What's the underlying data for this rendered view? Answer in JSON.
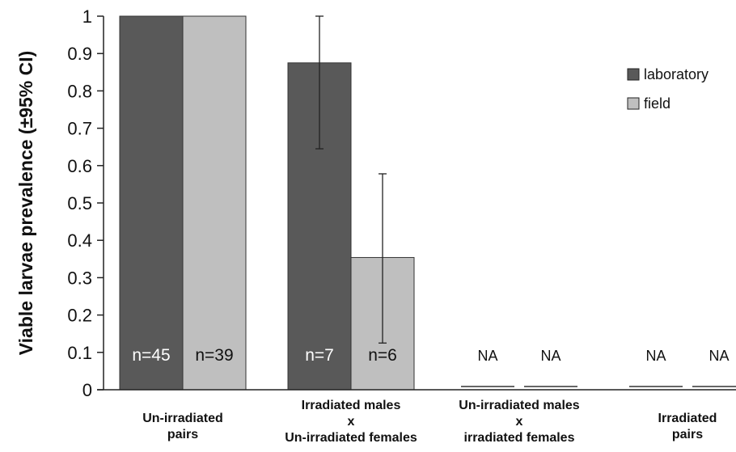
{
  "chart_data": {
    "type": "bar",
    "ylabel": "Viable larvae prevalence (±95% CI)",
    "xlabel": "",
    "ylim": [
      0,
      1
    ],
    "yticks": [
      "0",
      "0.1",
      "0.2",
      "0.3",
      "0.4",
      "0.5",
      "0.6",
      "0.7",
      "0.8",
      "0.9",
      "1"
    ],
    "grid": false,
    "legend_position": "right",
    "categories": [
      [
        "Un-irradiated",
        "pairs"
      ],
      [
        "Irradiated males",
        "x",
        "Un-irradiated females"
      ],
      [
        "Un-irradiated males",
        "x",
        "irradiated females"
      ],
      [
        "Irradiated",
        "pairs"
      ]
    ],
    "series": [
      {
        "name": "laboratory",
        "color": "#595959",
        "values": [
          1.0,
          0.875,
          null,
          null
        ],
        "ci_low": [
          null,
          0.645,
          null,
          null
        ],
        "ci_high": [
          null,
          1.0,
          null,
          null
        ],
        "labels": [
          "n=45",
          "n=7",
          "NA",
          "NA"
        ]
      },
      {
        "name": "field",
        "color": "#bfbfbf",
        "values": [
          1.0,
          0.354,
          null,
          null
        ],
        "ci_low": [
          null,
          0.125,
          null,
          null
        ],
        "ci_high": [
          null,
          0.578,
          null,
          null
        ],
        "labels": [
          "n=39",
          "n=6",
          "NA",
          "NA"
        ]
      }
    ]
  }
}
